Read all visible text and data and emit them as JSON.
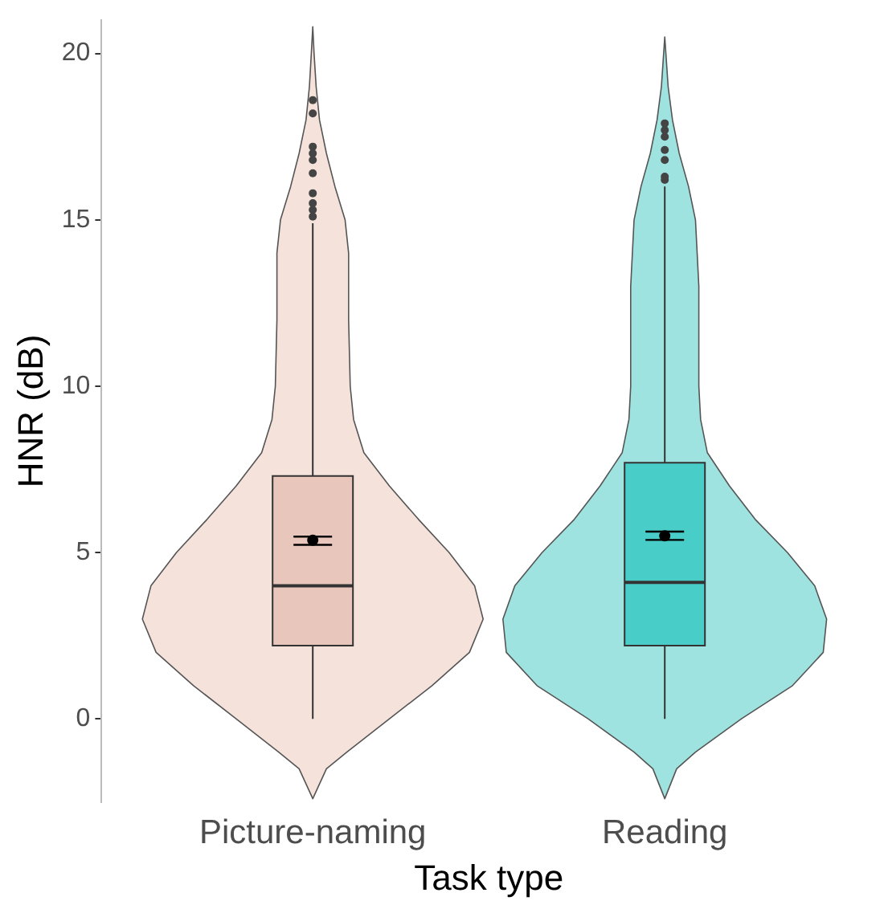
{
  "chart_data": {
    "type": "box",
    "xlabel": "Task type",
    "ylabel": "HNR (dB)",
    "categories": [
      "Picture-naming",
      "Reading"
    ],
    "colors": [
      "#e9c6bb",
      "#48cdc8"
    ],
    "boxes": [
      {
        "low": 0,
        "q1": 2.2,
        "median": 4.0,
        "q3": 7.3,
        "high": 14.9,
        "outliers": [
          15.1,
          15.3,
          15.5,
          15.8,
          16.4,
          16.8,
          17.0,
          17.2,
          18.2,
          18.6
        ]
      },
      {
        "low": 0,
        "q1": 2.2,
        "median": 4.1,
        "q3": 7.7,
        "high": 16.0,
        "outliers": [
          16.2,
          16.3,
          16.8,
          17.1,
          17.5,
          17.7,
          17.9
        ]
      }
    ],
    "series": [
      {
        "type": "scatter",
        "color": "#000000",
        "x": [
          "Picture-naming",
          "Reading"
        ],
        "values": [
          5.37,
          5.5
        ],
        "errors": [
          [
            5.23,
            5.48
          ],
          [
            5.38,
            5.63
          ]
        ]
      }
    ],
    "ylim": [
      -2.5,
      21
    ],
    "yticks": [
      0,
      5,
      10,
      15,
      20
    ],
    "grid": false,
    "legend": false
  }
}
